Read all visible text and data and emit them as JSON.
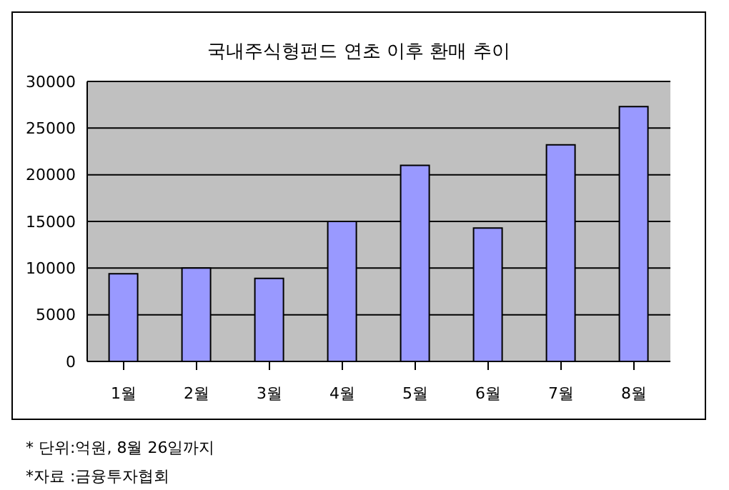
{
  "chart_data": {
    "type": "bar",
    "title": "국내주식형펀드 연초 이후 환매 추이",
    "categories": [
      "1월",
      "2월",
      "3월",
      "4월",
      "5월",
      "6월",
      "7월",
      "8월"
    ],
    "values": [
      9400,
      10000,
      8900,
      15000,
      21000,
      14300,
      23200,
      27300
    ],
    "color": "#9999ff",
    "ylim": [
      0,
      30000
    ],
    "yticks": [
      0,
      5000,
      10000,
      15000,
      20000,
      25000,
      30000
    ],
    "grid": "y",
    "annotations": [
      "* 단위:억원, 8월 26일까지",
      "*자료 :금융투자협회"
    ]
  }
}
